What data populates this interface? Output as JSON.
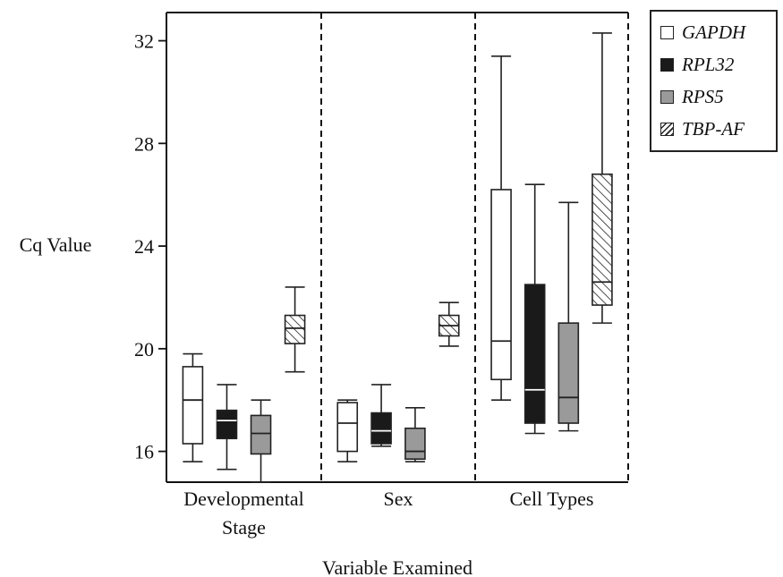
{
  "chart_data": {
    "type": "box",
    "ylabel": "Cq Value",
    "xlabel": "Variable Examined",
    "yticks": [
      16,
      20,
      24,
      28,
      32
    ],
    "ylim": [
      14.8,
      33.1
    ],
    "groups": [
      "Developmental\nStage",
      "Sex",
      "Cell Types"
    ],
    "series": [
      {
        "name": "GAPDH",
        "fill": "#ffffff",
        "pattern": "none"
      },
      {
        "name": "RPL32",
        "fill": "#1a1a1a",
        "pattern": "none"
      },
      {
        "name": "RPS5",
        "fill": "#9a9a9a",
        "pattern": "none"
      },
      {
        "name": "TBP-AF",
        "fill": "#ffffff",
        "pattern": "hatch"
      }
    ],
    "boxes": [
      {
        "group": 0,
        "series": "GAPDH",
        "min": 15.6,
        "q1": 16.3,
        "median": 18.0,
        "q3": 19.3,
        "max": 19.8
      },
      {
        "group": 0,
        "series": "RPL32",
        "min": 15.3,
        "q1": 16.5,
        "median": 17.2,
        "q3": 17.6,
        "max": 18.6
      },
      {
        "group": 0,
        "series": "RPS5",
        "min": 14.8,
        "q1": 15.9,
        "median": 16.7,
        "q3": 17.4,
        "max": 18.0
      },
      {
        "group": 0,
        "series": "TBP-AF",
        "min": 19.1,
        "q1": 20.2,
        "median": 20.8,
        "q3": 21.3,
        "max": 22.4
      },
      {
        "group": 1,
        "series": "GAPDH",
        "min": 15.6,
        "q1": 16.0,
        "median": 17.1,
        "q3": 17.9,
        "max": 18.0
      },
      {
        "group": 1,
        "series": "RPL32",
        "min": 16.2,
        "q1": 16.3,
        "median": 16.8,
        "q3": 17.5,
        "max": 18.6
      },
      {
        "group": 1,
        "series": "RPS5",
        "min": 15.6,
        "q1": 15.7,
        "median": 16.0,
        "q3": 16.9,
        "max": 17.7
      },
      {
        "group": 1,
        "series": "TBP-AF",
        "min": 20.1,
        "q1": 20.5,
        "median": 20.9,
        "q3": 21.3,
        "max": 21.8
      },
      {
        "group": 2,
        "series": "GAPDH",
        "min": 18.0,
        "q1": 18.8,
        "median": 20.3,
        "q3": 26.2,
        "max": 31.4
      },
      {
        "group": 2,
        "series": "RPL32",
        "min": 16.7,
        "q1": 17.1,
        "median": 18.4,
        "q3": 22.5,
        "max": 26.4
      },
      {
        "group": 2,
        "series": "RPS5",
        "min": 16.8,
        "q1": 17.1,
        "median": 18.1,
        "q3": 21.0,
        "max": 25.7
      },
      {
        "group": 2,
        "series": "TBP-AF",
        "min": 21.0,
        "q1": 21.7,
        "median": 22.6,
        "q3": 26.8,
        "max": 32.3
      }
    ],
    "grid": false,
    "legend_position": "top-right"
  }
}
